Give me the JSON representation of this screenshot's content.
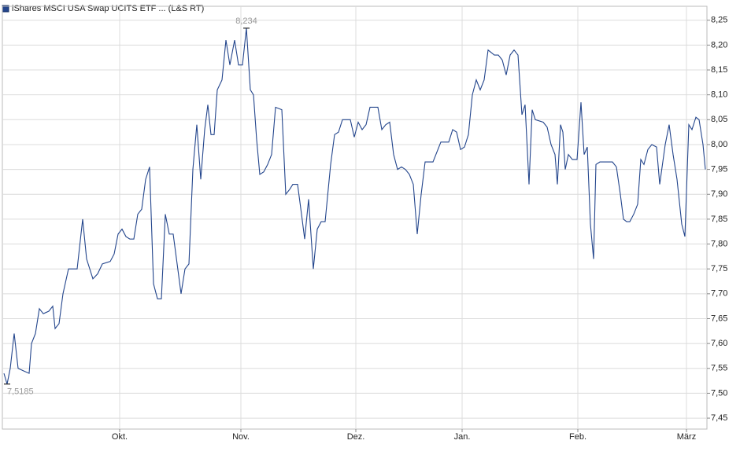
{
  "chart_data": {
    "type": "line",
    "series": [
      {
        "name": "iShares MSCI USA Swap UCITS ETF ... (L&S RT)",
        "color": "#23458c",
        "values": [
          7.54,
          7.5185,
          7.55,
          7.62,
          7.55,
          7.545,
          7.54,
          7.6,
          7.62,
          7.67,
          7.66,
          7.665,
          7.675,
          7.63,
          7.64,
          7.7,
          7.75,
          7.75,
          7.85,
          7.77,
          7.73,
          7.74,
          7.76,
          7.765,
          7.78,
          7.82,
          7.83,
          7.815,
          7.81,
          7.81,
          7.86,
          7.87,
          7.93,
          7.955,
          7.72,
          7.69,
          7.69,
          7.86,
          7.82,
          7.82,
          7.76,
          7.7,
          7.75,
          7.76,
          7.95,
          8.04,
          7.93,
          8.03,
          8.08,
          8.02,
          8.02,
          8.11,
          8.13,
          8.21,
          8.16,
          8.21,
          8.16,
          8.16,
          8.234,
          8.11,
          8.1,
          8.01,
          7.94,
          7.945,
          7.96,
          7.98,
          8.075,
          8.07,
          7.9,
          7.91,
          7.92,
          7.92,
          7.86,
          7.81,
          7.89,
          7.75,
          7.83,
          7.845,
          7.845,
          7.96,
          8.02,
          8.025,
          8.05,
          8.05,
          8.015,
          8.045,
          8.03,
          8.04,
          8.075,
          8.075,
          8.03,
          8.04,
          8.045,
          7.98,
          7.95,
          7.955,
          7.95,
          7.94,
          7.92,
          7.82,
          7.9,
          7.965,
          7.965,
          7.985,
          8.005,
          8.005,
          8.03,
          8.025,
          7.99,
          7.995,
          8.02,
          8.1,
          8.13,
          8.11,
          8.13,
          8.19,
          8.18,
          8.18,
          8.17,
          8.14,
          8.18,
          8.19,
          8.18,
          8.06,
          8.08,
          7.92,
          8.07,
          8.05,
          8.045,
          8.035,
          8.0,
          7.98,
          7.92,
          8.04,
          8.025,
          7.95,
          7.98,
          7.97,
          7.97,
          8.085,
          7.98,
          7.995,
          7.84,
          7.77,
          7.96,
          7.965,
          7.965,
          7.965,
          7.955,
          7.9,
          7.85,
          7.845,
          7.845,
          7.86,
          7.88,
          7.97,
          7.96,
          7.99,
          8.0,
          7.995,
          7.92,
          8.0,
          8.04,
          7.98,
          7.93,
          7.84,
          7.815,
          8.04,
          8.03,
          8.055,
          8.05,
          8.0,
          7.95
        ]
      }
    ],
    "x": [
      0,
      0.8,
      1.6,
      2.6,
      3.6,
      5,
      6.4,
      7,
      8,
      9,
      10,
      11.4,
      12.4,
      13,
      14,
      15,
      16.4,
      18.6,
      20,
      21,
      22.6,
      23.8,
      25,
      27,
      28,
      29,
      30,
      31,
      32,
      33,
      34,
      35,
      36,
      37,
      38,
      39,
      40,
      41,
      42,
      43,
      44,
      45,
      46,
      47,
      48,
      49,
      50,
      51,
      51.8,
      52.6,
      53.4,
      54.2,
      55.4,
      56.4,
      57.4,
      58.6,
      59.6,
      60.6,
      61.6,
      62.6,
      63.4,
      64.2,
      65,
      66,
      67,
      68,
      69,
      70.6,
      71.6,
      72.6,
      73.4,
      74.6,
      75.6,
      76.4,
      77.4,
      78.6,
      79.6,
      80.6,
      81.6,
      83,
      84,
      85,
      86,
      88,
      89,
      90,
      91,
      92,
      93,
      95,
      96,
      97,
      98,
      99,
      100,
      101,
      102,
      103,
      104,
      105,
      106,
      107,
      109,
      110,
      111,
      113,
      114,
      115,
      116,
      117,
      118,
      119,
      120,
      121,
      122,
      123,
      124.6,
      125.6,
      126.6,
      127.6,
      128.6,
      129.6,
      130.6,
      131.6,
      132.4,
      133.4,
      134.2,
      135,
      137,
      138,
      139,
      140,
      140.6,
      141.4,
      142,
      142.6,
      143.4,
      144.4,
      145.6,
      146.6,
      147.4,
      148.2,
      149,
      149.8,
      150.4,
      151.4,
      153,
      154.6,
      155.6,
      156.6,
      157.4,
      158.2,
      159,
      160,
      161,
      161.8,
      162.6,
      163.6,
      164.6,
      165.8,
      166.6,
      168,
      169,
      170,
      171,
      172.2,
      173,
      174,
      174.8,
      175.8,
      176.6,
      177.6,
      178.2
    ],
    "xlim": [
      -0.4,
      178.6
    ],
    "xticks": [
      {
        "value": 29.4,
        "label": "Okt."
      },
      {
        "value": 60.2,
        "label": "Nov."
      },
      {
        "value": 89.4,
        "label": "Dez."
      },
      {
        "value": 116.4,
        "label": "Jan."
      },
      {
        "value": 145.8,
        "label": "Feb."
      },
      {
        "value": 173.4,
        "label": "März"
      }
    ],
    "ylim": [
      7.428,
      8.278
    ],
    "yticks": [
      {
        "value": 7.45,
        "label": "7,45"
      },
      {
        "value": 7.5,
        "label": "7,50"
      },
      {
        "value": 7.55,
        "label": "7,55"
      },
      {
        "value": 7.6,
        "label": "7,60"
      },
      {
        "value": 7.65,
        "label": "7,65"
      },
      {
        "value": 7.7,
        "label": "7,70"
      },
      {
        "value": 7.75,
        "label": "7,75"
      },
      {
        "value": 7.8,
        "label": "7,80"
      },
      {
        "value": 7.85,
        "label": "7,85"
      },
      {
        "value": 7.9,
        "label": "7,90"
      },
      {
        "value": 7.95,
        "label": "7,95"
      },
      {
        "value": 8.0,
        "label": "8,00"
      },
      {
        "value": 8.05,
        "label": "8,05"
      },
      {
        "value": 8.1,
        "label": "8,10"
      },
      {
        "value": 8.15,
        "label": "8,15"
      },
      {
        "value": 8.2,
        "label": "8,20"
      },
      {
        "value": 8.25,
        "label": "8,25"
      }
    ],
    "annotations": [
      {
        "x": 61.6,
        "value": 8.234,
        "label": "8,234"
      },
      {
        "x": 0.8,
        "value": 7.5185,
        "label": "7,5185"
      }
    ],
    "grid": true
  }
}
